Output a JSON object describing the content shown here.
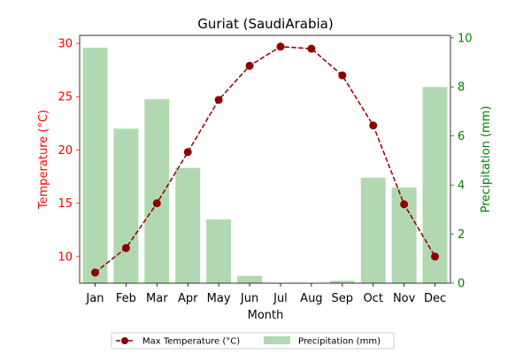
{
  "chart_data": {
    "type": "bar",
    "title": "Guriat (SaudiArabia)",
    "xlabel": "Month",
    "ylabel_left": "Temperature (°C)",
    "ylabel_right": "Precipitation (mm)",
    "categories": [
      "Jan",
      "Feb",
      "Mar",
      "Apr",
      "May",
      "Jun",
      "Jul",
      "Aug",
      "Sep",
      "Oct",
      "Nov",
      "Dec"
    ],
    "series": [
      {
        "name": "Max Temperature (°C)",
        "type": "line",
        "axis": "left",
        "color": "#8b0000",
        "values": [
          8.5,
          10.8,
          15.0,
          19.8,
          24.7,
          27.9,
          29.7,
          29.5,
          27.0,
          22.3,
          14.9,
          10.0
        ]
      },
      {
        "name": "Precipitation (mm)",
        "type": "bar",
        "axis": "right",
        "color": "#b2d8b2",
        "values": [
          9.6,
          6.3,
          7.5,
          4.7,
          2.6,
          0.3,
          0.0,
          0.0,
          0.1,
          4.3,
          3.9,
          8.0
        ]
      }
    ],
    "ylim_left": [
      7.5,
      30.75
    ],
    "ylim_right": [
      0,
      10.1
    ],
    "yticks_left": [
      10,
      15,
      20,
      25,
      30
    ],
    "yticks_right": [
      0,
      2,
      4,
      6,
      8,
      10
    ],
    "left_axis_color": "#ff0000",
    "right_axis_color": "#008000",
    "grid": false,
    "legend_position": "bottom-center"
  }
}
